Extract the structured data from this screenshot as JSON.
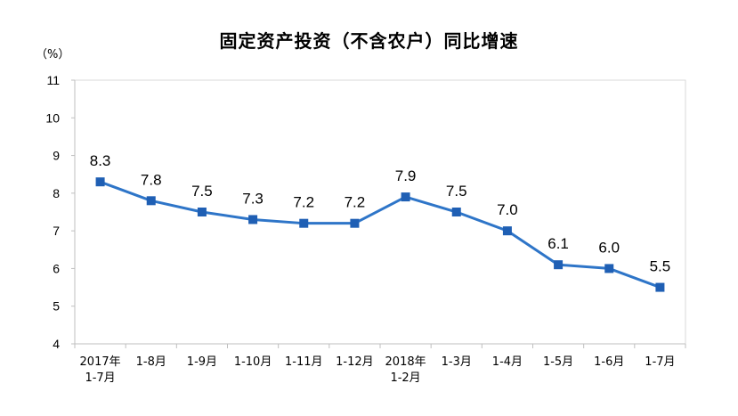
{
  "chart_data": {
    "type": "line",
    "title": "固定资产投资（不含农户）同比增速",
    "ylabel": "（%）",
    "xlabel": "",
    "ylim": [
      4,
      11
    ],
    "yticks": [
      "4",
      "5",
      "6",
      "7",
      "8",
      "9",
      "10",
      "11"
    ],
    "categories": [
      [
        "2017年",
        "1-7月"
      ],
      [
        "1-8月"
      ],
      [
        "1-9月"
      ],
      [
        "1-10月"
      ],
      [
        "1-11月"
      ],
      [
        "1-12月"
      ],
      [
        "2018年",
        "1-2月"
      ],
      [
        "1-3月"
      ],
      [
        "1-4月"
      ],
      [
        "1-5月"
      ],
      [
        "1-6月"
      ],
      [
        "1-7月"
      ]
    ],
    "values": [
      8.3,
      7.8,
      7.5,
      7.3,
      7.2,
      7.2,
      7.9,
      7.5,
      7.0,
      6.1,
      6.0,
      5.5
    ],
    "data_labels": [
      "8.3",
      "7.8",
      "7.5",
      "7.3",
      "7.2",
      "7.2",
      "7.9",
      "7.5",
      "7.0",
      "6.1",
      "6.0",
      "5.5"
    ],
    "grid": false,
    "legend": "none",
    "colors": {
      "line": "#2e75c8",
      "marker": "#1f5fb4"
    }
  }
}
